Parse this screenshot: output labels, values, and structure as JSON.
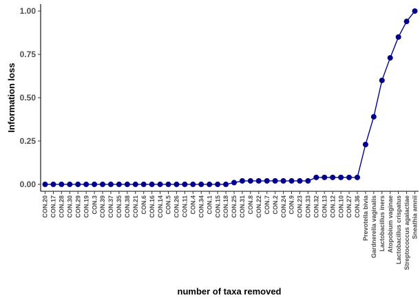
{
  "chart_data": {
    "type": "line",
    "xlabel": "number of taxa removed",
    "ylabel": "Information loss",
    "ylim": [
      -0.04,
      1.04
    ],
    "yticks": [
      "0.00",
      "0.25",
      "0.50",
      "0.75",
      "1.00"
    ],
    "yticks_values": [
      0,
      0.25,
      0.5,
      0.75,
      1.0
    ],
    "grid": false,
    "line_color": "#00008B",
    "point_color": "#00008B",
    "categories": [
      "CON.20",
      "CON.17",
      "CON.28",
      "CON.30",
      "CON.29",
      "CON.19",
      "CON.3",
      "CON.39",
      "CON.37",
      "CON.35",
      "CON.38",
      "CON.21",
      "CON.6",
      "CON.16",
      "CON.14",
      "CON.5",
      "CON.26",
      "CON.11",
      "CON.4",
      "CON.34",
      "CON.1",
      "CON.15",
      "CON.18",
      "CON.25",
      "CON.31",
      "CON.8",
      "CON.22",
      "CON.7",
      "CON.2",
      "CON.24",
      "CON.9",
      "CON.23",
      "CON.33",
      "CON.32",
      "CON.13",
      "CON.12",
      "CON.10",
      "CON.27",
      "CON.36",
      "Prevotella bivia",
      "Gardnerella vaginalis",
      "Lactobacillus iners",
      "Atopobium vaginae",
      "Lactobacillus crispatus",
      "Streptococcus agalactiae",
      "Sneathia amnii"
    ],
    "values": [
      0,
      0,
      0,
      0,
      0,
      0,
      0,
      0,
      0,
      0,
      0,
      0,
      0,
      0,
      0,
      0,
      0,
      0,
      0,
      0,
      0,
      0,
      0,
      0.01,
      0.02,
      0.02,
      0.02,
      0.02,
      0.02,
      0.02,
      0.02,
      0.02,
      0.02,
      0.04,
      0.04,
      0.04,
      0.04,
      0.04,
      0.04,
      0.23,
      0.39,
      0.6,
      0.73,
      0.85,
      0.94,
      1.0
    ]
  }
}
